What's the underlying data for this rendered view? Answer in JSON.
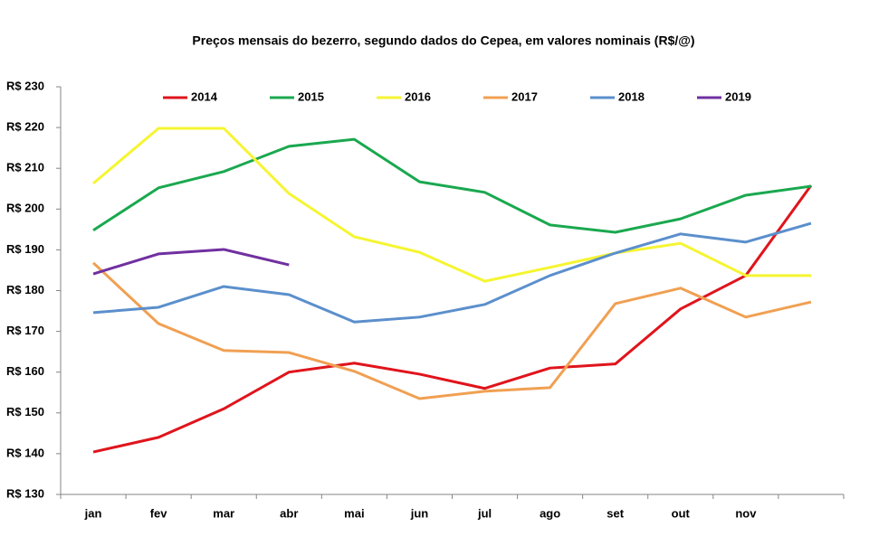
{
  "chart_data": {
    "type": "line",
    "title": "Preços mensais do bezerro, segundo dados do Cepea, em valores nominais  (R$/@)",
    "categories": [
      "jan",
      "fev",
      "mar",
      "abr",
      "mai",
      "jun",
      "jul",
      "ago",
      "set",
      "out",
      "nov",
      null
    ],
    "series": [
      {
        "name": "2014",
        "color": "#e0141c",
        "values": [
          140.4,
          144,
          151,
          160,
          162.2,
          159.5,
          156,
          161,
          162,
          175.5,
          183.7,
          205.8
        ]
      },
      {
        "name": "2015",
        "color": "#1aa84f",
        "values": [
          194.8,
          205.2,
          209.2,
          215.4,
          217.1,
          206.7,
          204.1,
          196.1,
          194.3,
          197.6,
          203.4,
          205.6
        ]
      },
      {
        "name": "2016",
        "color": "#f5f532",
        "values": [
          206.3,
          219.8,
          219.8,
          203.8,
          193.2,
          189.4,
          182.3,
          185.7,
          189.2,
          191.6,
          183.7,
          183.7
        ]
      },
      {
        "name": "2017",
        "color": "#f0a052",
        "values": [
          186.8,
          171.9,
          165.3,
          164.8,
          160.2,
          153.5,
          155.3,
          156.2,
          176.8,
          180.6,
          173.5,
          177.2
        ]
      },
      {
        "name": "2018",
        "color": "#5b8fcc",
        "values": [
          174.6,
          175.9,
          181,
          179,
          172.3,
          173.5,
          176.6,
          183.7,
          189.2,
          193.9,
          191.9,
          196.5
        ]
      },
      {
        "name": "2019",
        "color": "#7030a0",
        "values": [
          184.1,
          189,
          190.1,
          186.3,
          null,
          null,
          null,
          null,
          null,
          null,
          null,
          null
        ]
      }
    ],
    "ylim": [
      130,
      230
    ],
    "yticks": [
      {
        "value": 130,
        "label": "R$ 130"
      },
      {
        "value": 140,
        "label": "R$ 140"
      },
      {
        "value": 150,
        "label": "R$ 150"
      },
      {
        "value": 160,
        "label": "R$ 160"
      },
      {
        "value": 170,
        "label": "R$ 170"
      },
      {
        "value": 180,
        "label": "R$ 180"
      },
      {
        "value": 190,
        "label": "R$ 190"
      },
      {
        "value": 200,
        "label": "R$ 200"
      },
      {
        "value": 210,
        "label": "R$ 210"
      },
      {
        "value": 220,
        "label": "R$ 220"
      },
      {
        "value": 230,
        "label": "R$ 230"
      }
    ],
    "grid": false,
    "legend": "top"
  }
}
